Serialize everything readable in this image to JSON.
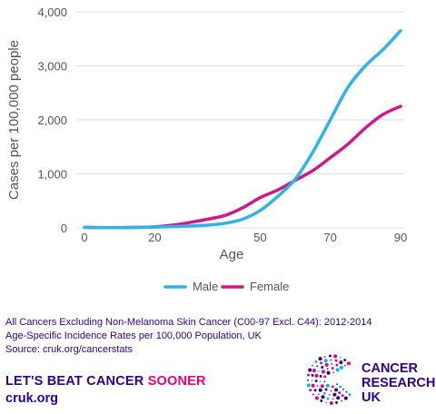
{
  "chart_data": {
    "type": "line",
    "xlabel": "Age",
    "ylabel": "Cases per 100,000 people",
    "xlim": [
      0,
      90
    ],
    "ylim": [
      0,
      4000
    ],
    "x_ticks": [
      "0",
      "20",
      "50",
      "70",
      "90"
    ],
    "x_tick_values": [
      0,
      20,
      50,
      70,
      90
    ],
    "y_ticks": [
      "0",
      "1,000",
      "2,000",
      "3,000",
      "4,000"
    ],
    "y_tick_values": [
      0,
      1000,
      2000,
      3000,
      4000
    ],
    "grid": true,
    "legend_position": "bottom",
    "series": [
      {
        "name": "Male",
        "color": "#2eb4e6",
        "x": [
          0,
          5,
          10,
          15,
          20,
          25,
          30,
          35,
          40,
          45,
          50,
          55,
          60,
          65,
          70,
          75,
          80,
          85,
          90
        ],
        "y": [
          10,
          5,
          5,
          10,
          15,
          25,
          35,
          50,
          85,
          160,
          320,
          580,
          900,
          1400,
          2000,
          2600,
          3000,
          3300,
          3650
        ]
      },
      {
        "name": "Female",
        "color": "#d0188b",
        "x": [
          0,
          5,
          10,
          15,
          20,
          25,
          30,
          35,
          40,
          45,
          50,
          55,
          60,
          65,
          70,
          75,
          80,
          85,
          90
        ],
        "y": [
          10,
          5,
          5,
          10,
          20,
          50,
          100,
          160,
          230,
          370,
          560,
          700,
          880,
          1060,
          1300,
          1550,
          1850,
          2100,
          2250
        ]
      }
    ]
  },
  "footer": {
    "line1": "All Cancers Excluding Non-Melanoma Skin Cancer (C00-97 Excl. C44): 2012-2014",
    "line2": "Age-Specific Incidence Rates per 100,000 Population, UK",
    "line3": "Source: cruk.org/cancerstats"
  },
  "slogan": {
    "main": "LET'S BEAT CANCER ",
    "accent": "SOONER"
  },
  "site": "cruk.org",
  "logo": {
    "line1": "CANCER",
    "line2": "RESEARCH",
    "line3": "UK"
  }
}
